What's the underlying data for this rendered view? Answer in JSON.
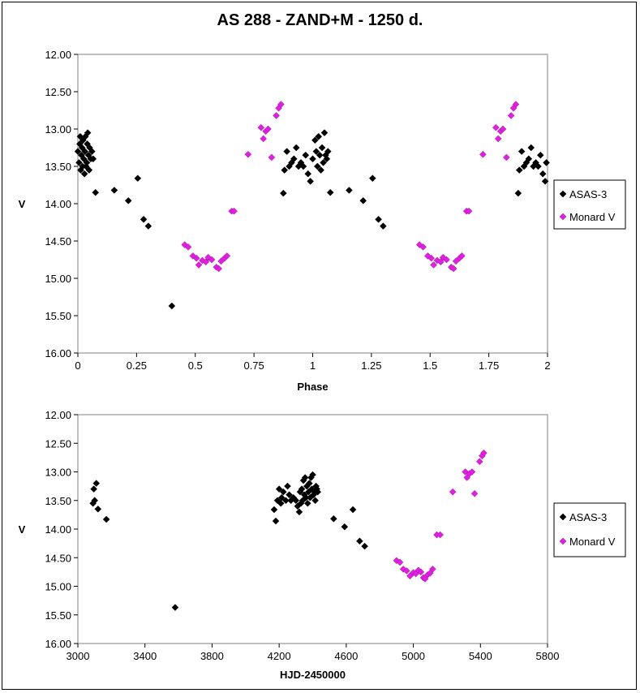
{
  "title": "AS 288 - ZAND+M - 1250 d.",
  "chart_data": [
    {
      "type": "scatter",
      "xlabel": "Phase",
      "ylabel": "V",
      "xlim": [
        0,
        2
      ],
      "ylim": [
        16.0,
        12.0
      ],
      "y_inverted": true,
      "x_ticks": [
        "0",
        "0.25",
        "0.5",
        "0.75",
        "1",
        "1.25",
        "1.5",
        "1.75",
        "2"
      ],
      "x_tick_values": [
        0,
        0.25,
        0.5,
        0.75,
        1,
        1.25,
        1.5,
        1.75,
        2
      ],
      "y_ticks": [
        "12.00",
        "12.50",
        "13.00",
        "13.50",
        "14.00",
        "14.50",
        "15.00",
        "15.50",
        "16.00"
      ],
      "y_tick_values": [
        12,
        12.5,
        13,
        13.5,
        14,
        14.5,
        15,
        15.5,
        16
      ],
      "grid": false,
      "legend_position": "right",
      "series": [
        {
          "name": "ASAS-3",
          "color": "#000000",
          "marker": "diamond",
          "points": [
            [
              0.0,
              13.3
            ],
            [
              0.005,
              13.45
            ],
            [
              0.008,
              13.2
            ],
            [
              0.01,
              13.1
            ],
            [
              0.012,
              13.55
            ],
            [
              0.015,
              13.35
            ],
            [
              0.018,
              13.25
            ],
            [
              0.02,
              13.5
            ],
            [
              0.022,
              13.15
            ],
            [
              0.025,
              13.4
            ],
            [
              0.028,
              13.6
            ],
            [
              0.03,
              13.3
            ],
            [
              0.032,
              13.1
            ],
            [
              0.035,
              13.5
            ],
            [
              0.038,
              13.45
            ],
            [
              0.04,
              13.2
            ],
            [
              0.042,
              13.05
            ],
            [
              0.045,
              13.35
            ],
            [
              0.048,
              13.55
            ],
            [
              0.05,
              13.25
            ],
            [
              0.055,
              13.4
            ],
            [
              0.06,
              13.3
            ],
            [
              0.065,
              13.4
            ],
            [
              0.075,
              13.85
            ],
            [
              0.155,
              13.82
            ],
            [
              0.215,
              13.96
            ],
            [
              0.255,
              13.66
            ],
            [
              0.28,
              14.21
            ],
            [
              0.3,
              14.3
            ],
            [
              0.4,
              15.37
            ],
            [
              0.875,
              13.86
            ],
            [
              0.88,
              13.55
            ],
            [
              0.89,
              13.3
            ],
            [
              0.9,
              13.5
            ],
            [
              0.91,
              13.45
            ],
            [
              0.92,
              13.4
            ],
            [
              0.93,
              13.25
            ],
            [
              0.94,
              13.5
            ],
            [
              0.95,
              13.45
            ],
            [
              0.96,
              13.5
            ],
            [
              0.97,
              13.35
            ],
            [
              0.98,
              13.6
            ],
            [
              0.99,
              13.7
            ],
            [
              1.0,
              13.4
            ],
            [
              1.01,
              13.15
            ],
            [
              1.015,
              13.3
            ],
            [
              1.02,
              13.5
            ],
            [
              1.025,
              13.1
            ],
            [
              1.03,
              13.35
            ],
            [
              1.035,
              13.55
            ],
            [
              1.04,
              13.25
            ],
            [
              1.045,
              13.45
            ],
            [
              1.05,
              13.05
            ],
            [
              1.055,
              13.35
            ],
            [
              1.06,
              13.4
            ],
            [
              1.065,
              13.3
            ],
            [
              1.075,
              13.85
            ],
            [
              1.155,
              13.82
            ],
            [
              1.215,
              13.96
            ],
            [
              1.255,
              13.66
            ],
            [
              1.28,
              14.21
            ],
            [
              1.3,
              14.3
            ],
            [
              1.875,
              13.86
            ],
            [
              1.88,
              13.55
            ],
            [
              1.89,
              13.3
            ],
            [
              1.9,
              13.5
            ],
            [
              1.91,
              13.45
            ],
            [
              1.92,
              13.4
            ],
            [
              1.93,
              13.25
            ],
            [
              1.94,
              13.5
            ],
            [
              1.95,
              13.45
            ],
            [
              1.96,
              13.5
            ],
            [
              1.97,
              13.35
            ],
            [
              1.98,
              13.6
            ],
            [
              1.99,
              13.7
            ],
            [
              1.995,
              13.45
            ]
          ]
        },
        {
          "name": "Monard V",
          "color": "#e020e0",
          "marker": "diamond",
          "points": [
            [
              0.455,
              14.55
            ],
            [
              0.47,
              14.58
            ],
            [
              0.49,
              14.7
            ],
            [
              0.505,
              14.73
            ],
            [
              0.515,
              14.82
            ],
            [
              0.53,
              14.76
            ],
            [
              0.545,
              14.78
            ],
            [
              0.555,
              14.72
            ],
            [
              0.57,
              14.75
            ],
            [
              0.59,
              14.85
            ],
            [
              0.6,
              14.87
            ],
            [
              0.61,
              14.77
            ],
            [
              0.625,
              14.73
            ],
            [
              0.635,
              14.7
            ],
            [
              0.655,
              14.1
            ],
            [
              0.665,
              14.1
            ],
            [
              0.725,
              13.34
            ],
            [
              0.78,
              12.98
            ],
            [
              0.79,
              13.13
            ],
            [
              0.8,
              13.03
            ],
            [
              0.81,
              13.0
            ],
            [
              0.825,
              13.38
            ],
            [
              0.845,
              12.82
            ],
            [
              0.855,
              12.72
            ],
            [
              0.865,
              12.67
            ],
            [
              1.455,
              14.55
            ],
            [
              1.47,
              14.58
            ],
            [
              1.49,
              14.7
            ],
            [
              1.505,
              14.73
            ],
            [
              1.515,
              14.82
            ],
            [
              1.53,
              14.76
            ],
            [
              1.545,
              14.78
            ],
            [
              1.555,
              14.72
            ],
            [
              1.57,
              14.75
            ],
            [
              1.59,
              14.85
            ],
            [
              1.6,
              14.87
            ],
            [
              1.61,
              14.77
            ],
            [
              1.625,
              14.73
            ],
            [
              1.635,
              14.7
            ],
            [
              1.655,
              14.1
            ],
            [
              1.665,
              14.1
            ],
            [
              1.725,
              13.34
            ],
            [
              1.78,
              12.98
            ],
            [
              1.79,
              13.13
            ],
            [
              1.8,
              13.03
            ],
            [
              1.81,
              13.0
            ],
            [
              1.825,
              13.38
            ],
            [
              1.845,
              12.82
            ],
            [
              1.855,
              12.72
            ],
            [
              1.865,
              12.67
            ]
          ]
        }
      ]
    },
    {
      "type": "scatter",
      "xlabel": "HJD-2450000",
      "ylabel": "V",
      "xlim": [
        3000,
        5800
      ],
      "ylim": [
        16.0,
        12.0
      ],
      "y_inverted": true,
      "x_ticks": [
        "3000",
        "3400",
        "3800",
        "4200",
        "4600",
        "5000",
        "5400",
        "5800"
      ],
      "x_tick_values": [
        3000,
        3400,
        3800,
        4200,
        4600,
        5000,
        5400,
        5800
      ],
      "y_ticks": [
        "12.00",
        "12.50",
        "13.00",
        "13.50",
        "14.00",
        "14.50",
        "15.00",
        "15.50",
        "16.00"
      ],
      "y_tick_values": [
        12,
        12.5,
        13,
        13.5,
        14,
        14.5,
        15,
        15.5,
        16
      ],
      "grid": false,
      "legend_position": "right",
      "series": [
        {
          "name": "ASAS-3",
          "color": "#000000",
          "marker": "diamond",
          "points": [
            [
              3090,
              13.55
            ],
            [
              3095,
              13.3
            ],
            [
              3100,
              13.5
            ],
            [
              3110,
              13.2
            ],
            [
              3120,
              13.65
            ],
            [
              3170,
              13.83
            ],
            [
              3580,
              15.37
            ],
            [
              4170,
              13.66
            ],
            [
              4180,
              13.86
            ],
            [
              4190,
              13.5
            ],
            [
              4200,
              13.3
            ],
            [
              4210,
              13.55
            ],
            [
              4215,
              13.45
            ],
            [
              4225,
              13.35
            ],
            [
              4240,
              13.5
            ],
            [
              4250,
              13.25
            ],
            [
              4260,
              13.4
            ],
            [
              4270,
              13.5
            ],
            [
              4285,
              13.45
            ],
            [
              4300,
              13.5
            ],
            [
              4310,
              13.6
            ],
            [
              4320,
              13.7
            ],
            [
              4325,
              13.35
            ],
            [
              4330,
              13.55
            ],
            [
              4335,
              13.3
            ],
            [
              4340,
              13.5
            ],
            [
              4345,
              13.15
            ],
            [
              4350,
              13.4
            ],
            [
              4355,
              13.1
            ],
            [
              4360,
              13.45
            ],
            [
              4365,
              13.25
            ],
            [
              4370,
              13.55
            ],
            [
              4375,
              13.35
            ],
            [
              4380,
              13.2
            ],
            [
              4385,
              13.45
            ],
            [
              4390,
              13.1
            ],
            [
              4395,
              13.3
            ],
            [
              4400,
              13.05
            ],
            [
              4405,
              13.4
            ],
            [
              4410,
              13.35
            ],
            [
              4415,
              13.5
            ],
            [
              4420,
              13.25
            ],
            [
              4425,
              13.3
            ],
            [
              4430,
              13.35
            ],
            [
              4525,
              13.82
            ],
            [
              4590,
              13.96
            ],
            [
              4640,
              13.66
            ],
            [
              4680,
              14.21
            ],
            [
              4710,
              14.3
            ]
          ]
        },
        {
          "name": "Monard V",
          "color": "#e020e0",
          "marker": "diamond",
          "points": [
            [
              4900,
              14.55
            ],
            [
              4920,
              14.58
            ],
            [
              4940,
              14.7
            ],
            [
              4960,
              14.73
            ],
            [
              4980,
              14.82
            ],
            [
              5000,
              14.76
            ],
            [
              5015,
              14.78
            ],
            [
              5030,
              14.72
            ],
            [
              5045,
              14.75
            ],
            [
              5060,
              14.85
            ],
            [
              5070,
              14.87
            ],
            [
              5085,
              14.8
            ],
            [
              5100,
              14.77
            ],
            [
              5115,
              14.7
            ],
            [
              5140,
              14.1
            ],
            [
              5160,
              14.1
            ],
            [
              5235,
              13.35
            ],
            [
              5310,
              13.0
            ],
            [
              5320,
              13.1
            ],
            [
              5335,
              13.03
            ],
            [
              5350,
              13.0
            ],
            [
              5365,
              13.38
            ],
            [
              5395,
              12.82
            ],
            [
              5410,
              12.72
            ],
            [
              5420,
              12.67
            ]
          ]
        }
      ]
    }
  ]
}
